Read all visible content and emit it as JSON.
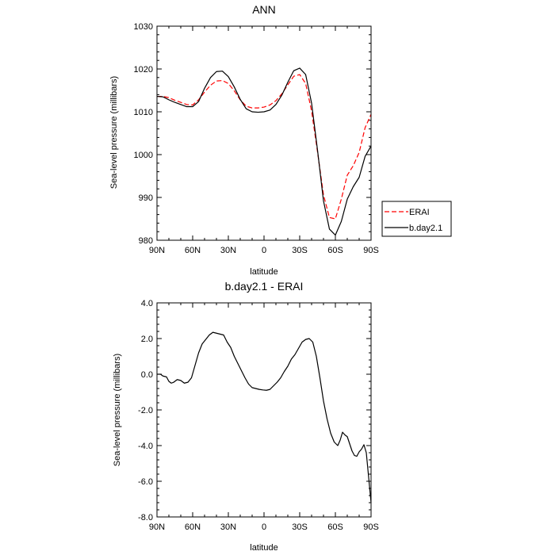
{
  "chart_data": [
    {
      "type": "line",
      "title": "ANN",
      "xlabel": "latitude",
      "ylabel": "Sea-level pressure (millibars)",
      "xlim": [
        90,
        -90
      ],
      "ylim": [
        980,
        1030
      ],
      "xticks": [
        90,
        60,
        30,
        0,
        -30,
        -60,
        -90
      ],
      "xtick_labels": [
        "90N",
        "60N",
        "30N",
        "0",
        "30S",
        "60S",
        "90S"
      ],
      "yticks": [
        980,
        990,
        1000,
        1010,
        1020,
        1030
      ],
      "ytick_labels": [
        "980",
        "990",
        "1000",
        "1010",
        "1020",
        "1030"
      ],
      "legend_position": "outside-right",
      "series": [
        {
          "name": "ERAI",
          "color": "#ff0000",
          "dash": "dashed",
          "x": [
            90,
            85,
            80,
            75,
            70,
            65,
            60,
            55,
            50,
            45,
            40,
            35,
            30,
            25,
            20,
            15,
            10,
            5,
            0,
            -5,
            -10,
            -15,
            -20,
            -25,
            -30,
            -35,
            -40,
            -45,
            -50,
            -55,
            -60,
            -65,
            -70,
            -75,
            -80,
            -85,
            -90
          ],
          "y": [
            1013.6,
            1013.6,
            1013.3,
            1012.7,
            1012.2,
            1011.7,
            1011.6,
            1012.8,
            1014.6,
            1016.2,
            1017.2,
            1017.3,
            1016.6,
            1014.9,
            1012.8,
            1011.3,
            1010.9,
            1010.9,
            1011.1,
            1011.6,
            1012.6,
            1014.2,
            1016.3,
            1018.3,
            1018.7,
            1016.6,
            1010.2,
            1000.6,
            990.6,
            985.3,
            985.0,
            989.6,
            995.2,
            997.4,
            1000.5,
            1006.3,
            1009.4
          ]
        },
        {
          "name": "b.day2.1",
          "color": "#000000",
          "dash": "solid",
          "x": [
            90,
            85,
            80,
            75,
            70,
            65,
            60,
            55,
            50,
            45,
            40,
            35,
            30,
            25,
            20,
            15,
            10,
            5,
            0,
            -5,
            -10,
            -15,
            -20,
            -25,
            -30,
            -35,
            -40,
            -45,
            -50,
            -55,
            -60,
            -65,
            -70,
            -75,
            -80,
            -85,
            -90
          ],
          "y": [
            1013.6,
            1013.5,
            1012.8,
            1012.2,
            1011.7,
            1011.2,
            1011.2,
            1012.4,
            1015.5,
            1018.0,
            1019.4,
            1019.5,
            1018.2,
            1015.8,
            1012.9,
            1010.7,
            1010.0,
            1009.9,
            1010.0,
            1010.4,
            1011.7,
            1013.9,
            1016.9,
            1019.6,
            1020.2,
            1018.7,
            1012.0,
            1001.0,
            989.2,
            982.6,
            981.2,
            984.4,
            989.6,
            992.5,
            994.7,
            999.6,
            1002.0
          ]
        }
      ]
    },
    {
      "type": "line",
      "title": "b.day2.1 - ERAI",
      "xlabel": "latitude",
      "ylabel": "Sea-level pressure (millibars)",
      "xlim": [
        90,
        -90
      ],
      "ylim": [
        -8.0,
        4.0
      ],
      "xticks": [
        90,
        60,
        30,
        0,
        -30,
        -60,
        -90
      ],
      "xtick_labels": [
        "90N",
        "60N",
        "30N",
        "0",
        "30S",
        "60S",
        "90S"
      ],
      "yticks": [
        -8.0,
        -6.0,
        -4.0,
        -2.0,
        0.0,
        2.0,
        4.0
      ],
      "ytick_labels": [
        "-8.0",
        "-6.0",
        "-4.0",
        "-2.0",
        "0.0",
        "2.0",
        "4.0"
      ],
      "series": [
        {
          "color": "#000000",
          "dash": "solid",
          "x": [
            90,
            87,
            85,
            82,
            80,
            78,
            76,
            73,
            70,
            67,
            64,
            61,
            58,
            55,
            52,
            49,
            46,
            43,
            40,
            37,
            34,
            31,
            28,
            25,
            22,
            19,
            16,
            13,
            10,
            7,
            4,
            1,
            -2,
            -5,
            -8,
            -11,
            -14,
            -17,
            -20,
            -23,
            -26,
            -29,
            -32,
            -35,
            -38,
            -41,
            -44,
            -47,
            -50,
            -53,
            -56,
            -59,
            -62,
            -64,
            -66,
            -68,
            -70,
            -72,
            -74,
            -76,
            -78,
            -80,
            -82,
            -84,
            -86,
            -88,
            -90
          ],
          "y": [
            0.0,
            0.0,
            -0.1,
            -0.15,
            -0.4,
            -0.5,
            -0.45,
            -0.3,
            -0.35,
            -0.5,
            -0.45,
            -0.2,
            0.5,
            1.2,
            1.7,
            1.95,
            2.2,
            2.35,
            2.3,
            2.25,
            2.2,
            1.8,
            1.5,
            1.0,
            0.6,
            0.2,
            -0.2,
            -0.55,
            -0.75,
            -0.8,
            -0.85,
            -0.88,
            -0.9,
            -0.85,
            -0.65,
            -0.45,
            -0.2,
            0.15,
            0.45,
            0.85,
            1.1,
            1.45,
            1.8,
            1.95,
            2.0,
            1.8,
            1.0,
            -0.2,
            -1.5,
            -2.5,
            -3.3,
            -3.8,
            -4.0,
            -3.7,
            -3.25,
            -3.4,
            -3.5,
            -3.9,
            -4.3,
            -4.55,
            -4.6,
            -4.35,
            -4.2,
            -3.95,
            -4.4,
            -5.8,
            -7.2
          ]
        }
      ]
    }
  ]
}
